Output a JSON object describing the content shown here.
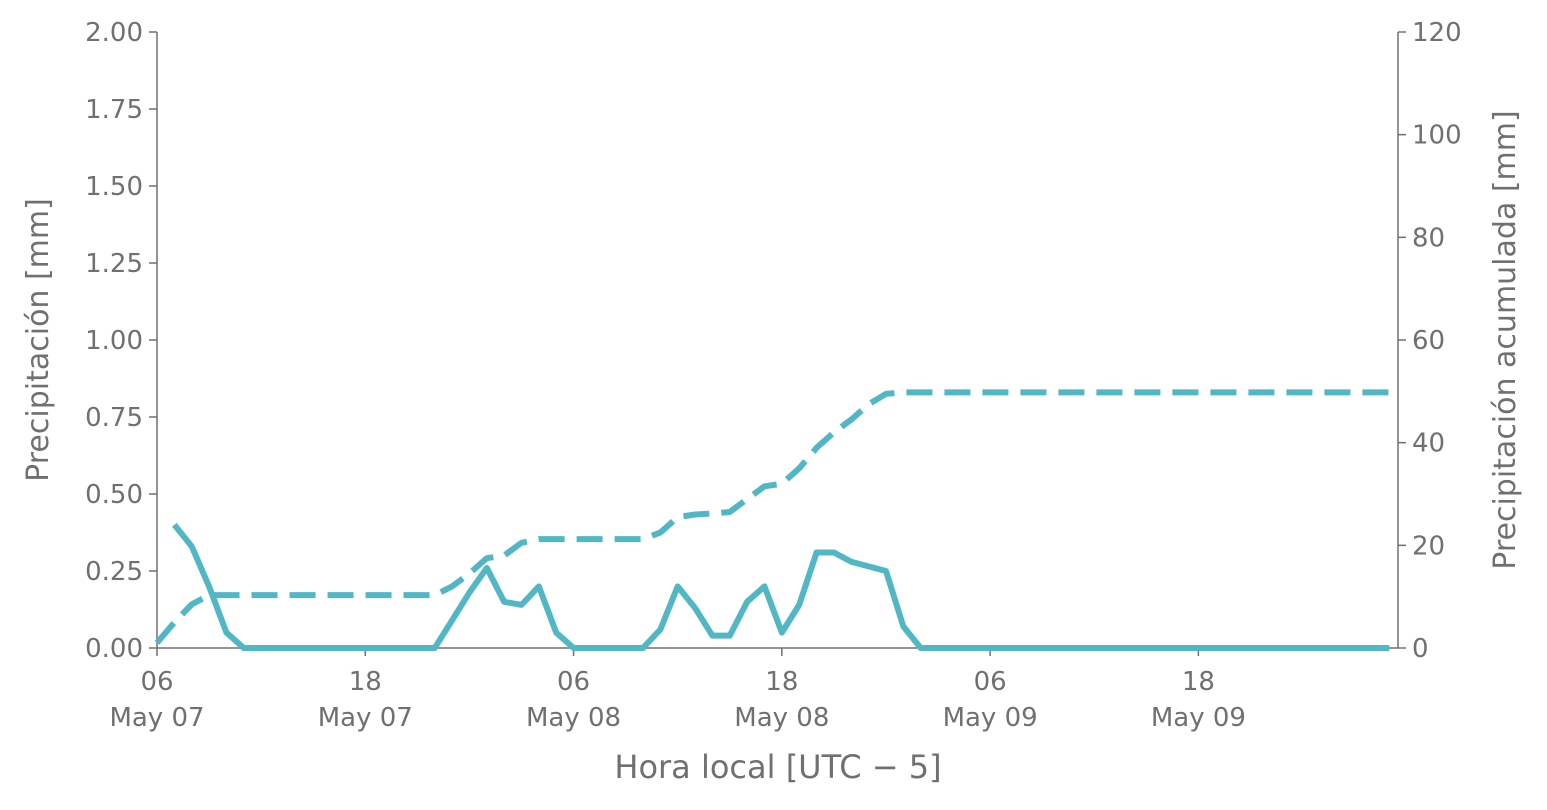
{
  "chart_data": {
    "type": "line",
    "y_label": "Precipitación [mm]",
    "y2_label": "Precipitación acumulada [mm]",
    "x_label": "Hora local [UTC − 5]",
    "x": [
      "05-07 06:00",
      "05-07 07:00",
      "05-07 08:00",
      "05-07 09:00",
      "05-07 10:00",
      "05-07 11:00",
      "05-07 12:00",
      "05-07 13:00",
      "05-07 14:00",
      "05-07 15:00",
      "05-07 16:00",
      "05-07 17:00",
      "05-07 18:00",
      "05-07 19:00",
      "05-07 20:00",
      "05-07 21:00",
      "05-07 22:00",
      "05-07 23:00",
      "05-08 00:00",
      "05-08 01:00",
      "05-08 02:00",
      "05-08 03:00",
      "05-08 04:00",
      "05-08 05:00",
      "05-08 06:00",
      "05-08 07:00",
      "05-08 08:00",
      "05-08 09:00",
      "05-08 10:00",
      "05-08 11:00",
      "05-08 12:00",
      "05-08 13:00",
      "05-08 14:00",
      "05-08 15:00",
      "05-08 16:00",
      "05-08 17:00",
      "05-08 18:00",
      "05-08 19:00",
      "05-08 20:00",
      "05-08 21:00",
      "05-08 22:00",
      "05-08 23:00",
      "05-09 00:00",
      "05-09 01:00",
      "05-09 02:00",
      "05-09 03:00",
      "05-09 04:00",
      "05-09 05:00",
      "05-09 06:00",
      "05-09 07:00",
      "05-09 08:00",
      "05-09 09:00",
      "05-09 10:00",
      "05-09 11:00",
      "05-09 12:00",
      "05-09 13:00",
      "05-09 14:00",
      "05-09 15:00",
      "05-09 16:00",
      "05-09 17:00",
      "05-09 18:00",
      "05-09 19:00",
      "05-09 20:00",
      "05-09 21:00",
      "05-09 22:00",
      "05-09 23:00",
      "05-10 00:00",
      "05-10 01:00",
      "05-10 02:00",
      "05-10 03:00",
      "05-10 04:00",
      "05-10 05:00"
    ],
    "series": [
      {
        "name": "Precipitación",
        "color": "#52b7c4",
        "dash": false,
        "values": [
          null,
          0.4,
          0.33,
          0.2,
          0.05,
          0,
          0,
          0,
          0,
          0,
          0,
          0,
          0,
          0,
          0,
          0,
          0,
          0.09,
          0.18,
          0.26,
          0.15,
          0.14,
          0.2,
          0.05,
          0,
          0,
          0,
          0,
          0,
          0.06,
          0.2,
          0.13,
          0.04,
          0.04,
          0.15,
          0.2,
          0.05,
          0.14,
          0.31,
          0.31,
          0.28,
          0.265,
          0.25,
          0.07,
          0,
          0,
          0,
          0,
          0,
          0,
          0,
          0,
          0,
          0,
          0,
          0,
          0,
          0,
          0,
          0,
          0,
          0,
          0,
          0,
          0,
          0,
          0,
          0,
          0,
          0,
          0,
          0
        ]
      },
      {
        "name": "Precipitación acumulada",
        "color": "#52b7c4",
        "dash": true,
        "axis": "y2",
        "values": [
          1,
          5,
          8.5,
          10.3,
          10.3,
          10.3,
          10.3,
          10.3,
          10.3,
          10.3,
          10.3,
          10.3,
          10.3,
          10.3,
          10.3,
          10.3,
          10.3,
          12,
          14.5,
          17.5,
          18,
          20.5,
          21.2,
          21.2,
          21.2,
          21.2,
          21.2,
          21.2,
          21.2,
          22.5,
          25.5,
          26,
          26.2,
          26.5,
          29,
          31.5,
          32,
          35,
          39,
          42,
          44.5,
          47.5,
          49.5,
          49.8,
          49.8,
          49.8,
          49.8,
          49.8,
          49.8,
          49.8,
          49.8,
          49.8,
          49.8,
          49.8,
          49.8,
          49.8,
          49.8,
          49.8,
          49.8,
          49.8,
          49.8,
          49.8,
          49.8,
          49.8,
          49.8,
          49.8,
          49.8,
          49.8,
          49.8,
          49.8,
          49.8,
          49.8
        ]
      }
    ],
    "xlim": [
      "05-07 06:00",
      "05-10 05:30"
    ],
    "xticks": [
      {
        "value": "05-07 06:00",
        "label": "06\nMay 07"
      },
      {
        "value": "05-07 18:00",
        "label": "18\nMay 07"
      },
      {
        "value": "05-08 06:00",
        "label": "06\nMay 08"
      },
      {
        "value": "05-08 18:00",
        "label": "18\nMay 08"
      },
      {
        "value": "05-09 06:00",
        "label": "06\nMay 09"
      },
      {
        "value": "05-09 18:00",
        "label": "18\nMay 09"
      }
    ],
    "ylim": [
      0,
      2
    ],
    "yticks": [
      {
        "value": 0,
        "label": "0.00"
      },
      {
        "value": 0.25,
        "label": "0.25"
      },
      {
        "value": 0.5,
        "label": "0.50"
      },
      {
        "value": 0.75,
        "label": "0.75"
      },
      {
        "value": 1,
        "label": "1.00"
      },
      {
        "value": 1.25,
        "label": "1.25"
      },
      {
        "value": 1.5,
        "label": "1.50"
      },
      {
        "value": 1.75,
        "label": "1.75"
      },
      {
        "value": 2,
        "label": "2.00"
      }
    ],
    "y2lim": [
      0,
      120
    ],
    "y2ticks": [
      0,
      20,
      40,
      60,
      80,
      100,
      120
    ],
    "grid": false
  }
}
